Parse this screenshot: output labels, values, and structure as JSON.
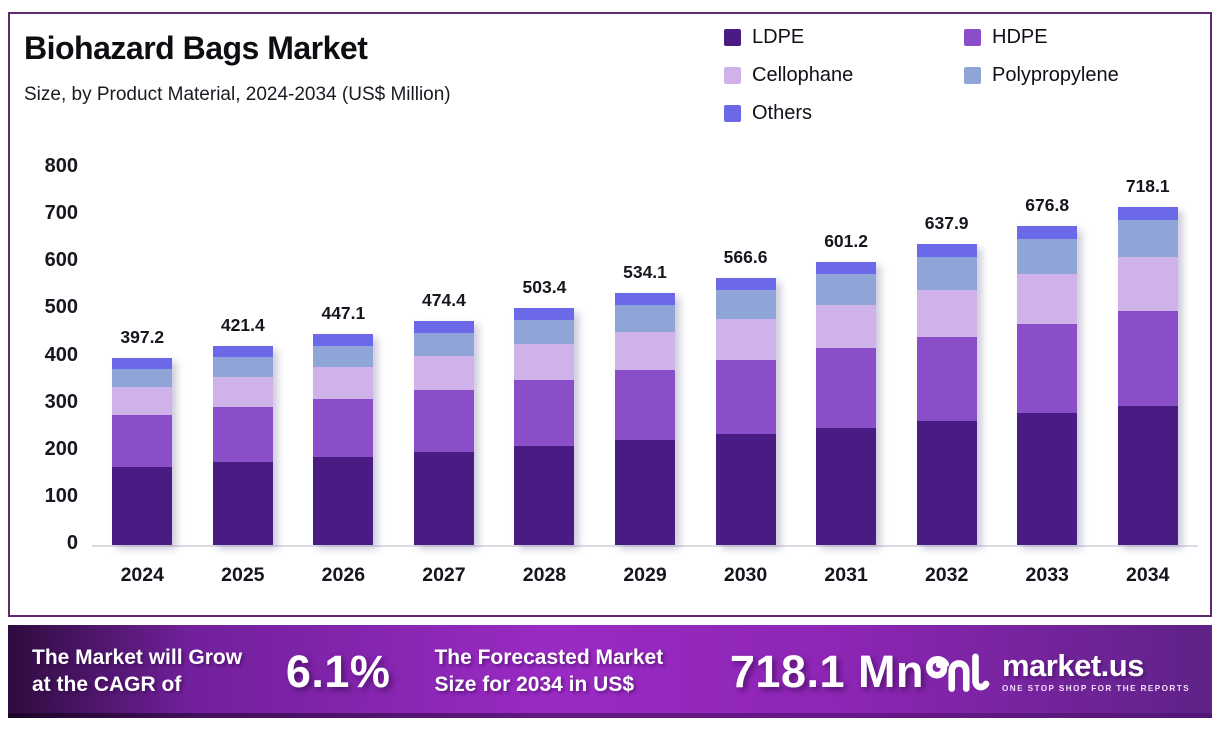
{
  "chart_data": {
    "type": "bar",
    "stacked": true,
    "title": "Biohazard Bags Market",
    "subtitle": "Size, by Product Material, 2024-2034 (US$ Million)",
    "categories": [
      "2024",
      "2025",
      "2026",
      "2027",
      "2028",
      "2029",
      "2030",
      "2031",
      "2032",
      "2033",
      "2034"
    ],
    "series": [
      {
        "name": "LDPE",
        "color": "#481c82",
        "values": [
          166.4,
          176.3,
          186.7,
          197.7,
          209.5,
          221.9,
          235.0,
          249.0,
          263.7,
          279.3,
          295.8
        ]
      },
      {
        "name": "HDPE",
        "color": "#8b4ec9",
        "values": [
          110.0,
          116.9,
          124.2,
          131.9,
          140.2,
          149.0,
          158.3,
          168.2,
          178.7,
          189.9,
          201.8
        ]
      },
      {
        "name": "Cellophane",
        "color": "#d0b2ea",
        "values": [
          58.4,
          62.4,
          66.6,
          71.2,
          76.0,
          81.2,
          86.7,
          92.6,
          98.9,
          105.6,
          112.7
        ]
      },
      {
        "name": "Polypropylene",
        "color": "#8fa5d8",
        "values": [
          39.7,
          42.7,
          45.8,
          49.2,
          52.8,
          56.6,
          60.7,
          65.2,
          69.9,
          75.0,
          80.4
        ]
      },
      {
        "name": "Others",
        "color": "#6c69e8",
        "values": [
          22.7,
          23.1,
          23.8,
          24.4,
          24.9,
          25.4,
          25.9,
          26.2,
          26.7,
          27.0,
          27.4
        ]
      }
    ],
    "totals": [
      397.2,
      421.4,
      447.1,
      474.4,
      503.4,
      534.1,
      566.6,
      601.2,
      637.9,
      676.8,
      718.1
    ],
    "total_labels": [
      "397.2",
      "421.4",
      "447.1",
      "474.4",
      "503.4",
      "534.1",
      "566.6",
      "601.2",
      "637.9",
      "676.8",
      "718.1"
    ],
    "ylim": [
      0,
      800
    ],
    "yticks": [
      0,
      100,
      200,
      300,
      400,
      500,
      600,
      700,
      800
    ],
    "grid": false,
    "legend_position": "top-right"
  },
  "banner": {
    "cagr_label_line1": "The Market will Grow",
    "cagr_label_line2": "at the CAGR of",
    "cagr_value": "6.1%",
    "forecast_label_line1": "The Forecasted Market",
    "forecast_label_line2": "Size for 2034 in US$",
    "forecast_value": "718.1 Mn",
    "brand": {
      "name": "market.us",
      "tagline": "ONE STOP SHOP FOR THE REPORTS"
    }
  },
  "colors": {
    "frame_border": "#5f2a70",
    "banner_gradient_start": "#2e0c3e",
    "banner_gradient_mid": "#9a2ac4",
    "banner_gradient_end": "#5e2286",
    "axis_line": "#dcdce4",
    "text_dark": "#16161e"
  }
}
